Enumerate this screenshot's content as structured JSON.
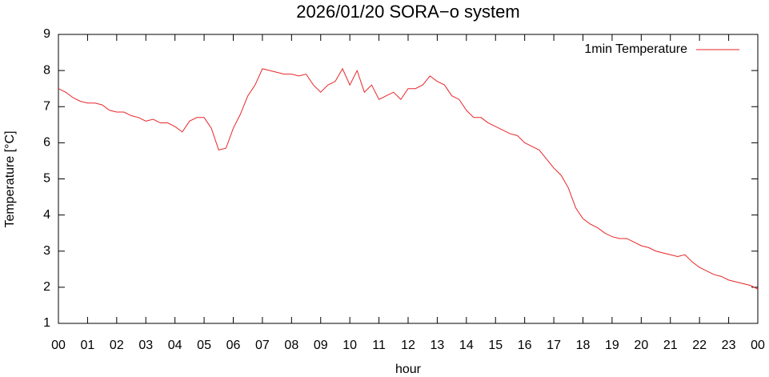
{
  "chart_data": {
    "type": "line",
    "title": "2026/01/20 SORA−o system",
    "x_label": "hour",
    "y_label": "Temperature [°C]",
    "legend": "top-right",
    "x": [
      0,
      0.25,
      0.5,
      0.75,
      1,
      1.25,
      1.5,
      1.75,
      2,
      2.25,
      2.5,
      2.75,
      3,
      3.25,
      3.5,
      3.75,
      4,
      4.25,
      4.5,
      4.75,
      5,
      5.25,
      5.5,
      5.75,
      6,
      6.25,
      6.5,
      6.75,
      7,
      7.25,
      7.5,
      7.75,
      8,
      8.25,
      8.5,
      8.75,
      9,
      9.25,
      9.5,
      9.75,
      10,
      10.25,
      10.5,
      10.75,
      11,
      11.25,
      11.5,
      11.75,
      12,
      12.25,
      12.5,
      12.75,
      13,
      13.25,
      13.5,
      13.75,
      14,
      14.25,
      14.5,
      14.75,
      15,
      15.25,
      15.5,
      15.75,
      16,
      16.25,
      16.5,
      16.75,
      17,
      17.25,
      17.5,
      17.75,
      18,
      18.25,
      18.5,
      18.75,
      19,
      19.25,
      19.5,
      19.75,
      20,
      20.25,
      20.5,
      20.75,
      21,
      21.25,
      21.5,
      21.75,
      22,
      22.25,
      22.5,
      22.75,
      23,
      23.25,
      23.5,
      23.75,
      24
    ],
    "series": [
      {
        "name": "1min Temperature",
        "color": "#e8262a",
        "values": [
          7.5,
          7.4,
          7.25,
          7.15,
          7.1,
          7.1,
          7.05,
          6.9,
          6.85,
          6.85,
          6.75,
          6.7,
          6.6,
          6.65,
          6.55,
          6.55,
          6.45,
          6.3,
          6.6,
          6.7,
          6.7,
          6.4,
          5.8,
          5.85,
          6.4,
          6.8,
          7.3,
          7.6,
          8.05,
          8.0,
          7.95,
          7.9,
          7.9,
          7.85,
          7.9,
          7.6,
          7.4,
          7.6,
          7.7,
          8.05,
          7.6,
          8.0,
          7.4,
          7.6,
          7.2,
          7.3,
          7.4,
          7.2,
          7.5,
          7.5,
          7.6,
          7.85,
          7.7,
          7.6,
          7.3,
          7.2,
          6.9,
          6.7,
          6.7,
          6.55,
          6.45,
          6.35,
          6.25,
          6.2,
          6.0,
          5.9,
          5.8,
          5.55,
          5.3,
          5.1,
          4.75,
          4.2,
          3.9,
          3.75,
          3.65,
          3.5,
          3.4,
          3.35,
          3.35,
          3.25,
          3.15,
          3.1,
          3.0,
          2.95,
          2.9,
          2.85,
          2.9,
          2.7,
          2.55,
          2.45,
          2.35,
          2.3,
          2.2,
          2.15,
          2.1,
          2.05,
          1.95
        ]
      }
    ],
    "xlim": [
      0,
      24
    ],
    "xticks": [
      {
        "value": 0,
        "label": "00"
      },
      {
        "value": 1,
        "label": "01"
      },
      {
        "value": 2,
        "label": "02"
      },
      {
        "value": 3,
        "label": "03"
      },
      {
        "value": 4,
        "label": "04"
      },
      {
        "value": 5,
        "label": "05"
      },
      {
        "value": 6,
        "label": "06"
      },
      {
        "value": 7,
        "label": "07"
      },
      {
        "value": 8,
        "label": "08"
      },
      {
        "value": 9,
        "label": "09"
      },
      {
        "value": 10,
        "label": "10"
      },
      {
        "value": 11,
        "label": "11"
      },
      {
        "value": 12,
        "label": "12"
      },
      {
        "value": 13,
        "label": "13"
      },
      {
        "value": 14,
        "label": "14"
      },
      {
        "value": 15,
        "label": "15"
      },
      {
        "value": 16,
        "label": "16"
      },
      {
        "value": 17,
        "label": "17"
      },
      {
        "value": 18,
        "label": "18"
      },
      {
        "value": 19,
        "label": "19"
      },
      {
        "value": 20,
        "label": "20"
      },
      {
        "value": 21,
        "label": "21"
      },
      {
        "value": 22,
        "label": "22"
      },
      {
        "value": 23,
        "label": "23"
      },
      {
        "value": 24,
        "label": "00"
      }
    ],
    "ylim": [
      1,
      9
    ],
    "yticks": [
      1,
      2,
      3,
      4,
      5,
      6,
      7,
      8,
      9
    ]
  }
}
